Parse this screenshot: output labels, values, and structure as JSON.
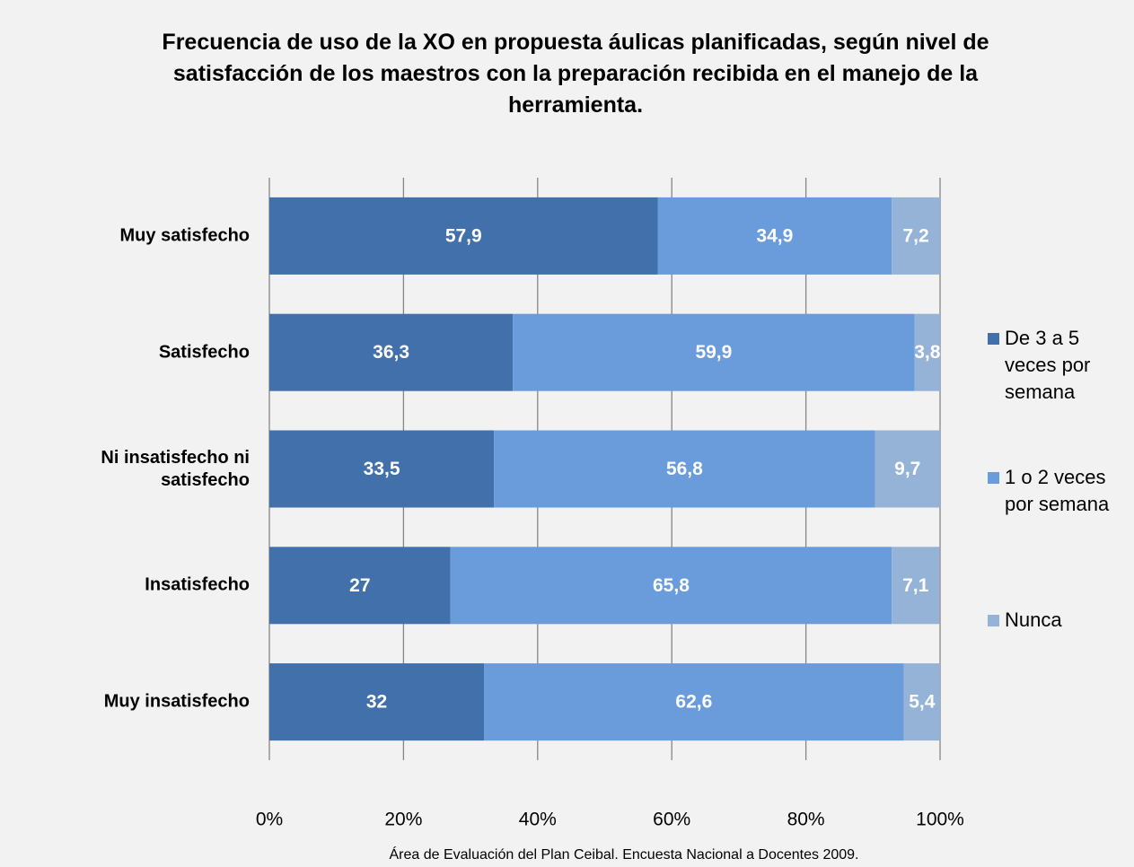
{
  "chart_data": {
    "type": "stacked_barh",
    "title": "Frecuencia de uso de la XO en propuesta áulicas planificadas, según nivel de satisfacción de los maestros con la preparación recibida en el manejo de la herramienta.",
    "source": "Área de Evaluación del Plan Ceibal. Encuesta Nacional a Docentes 2009.",
    "categories": [
      "Muy satisfecho",
      "Satisfecho",
      "Ni insatisfecho ni satisfecho",
      "Insatisfecho",
      "Muy insatisfecho"
    ],
    "series": [
      {
        "name": "De 3 a 5 veces por semana",
        "color": "#4170aa",
        "values": [
          57.9,
          36.3,
          33.5,
          27,
          32
        ],
        "value_labels": [
          "57,9",
          "36,3",
          "33,5",
          "27",
          "32"
        ]
      },
      {
        "name": "1 o 2 veces por semana",
        "color": "#6a9cdc",
        "values": [
          34.9,
          59.9,
          56.8,
          65.8,
          62.6
        ],
        "value_labels": [
          "34,9",
          "59,9",
          "56,8",
          "65,8",
          "62,6"
        ]
      },
      {
        "name": "Nunca",
        "color": "#95b3d7",
        "values": [
          7.2,
          3.8,
          9.7,
          7.1,
          5.4
        ],
        "value_labels": [
          "7,2",
          "3,8",
          "9,7",
          "7,1",
          "5,4"
        ]
      }
    ],
    "xlim": [
      0,
      100
    ],
    "xticks": [
      {
        "value": 0,
        "label": "0%"
      },
      {
        "value": 20,
        "label": "20%"
      },
      {
        "value": 40,
        "label": "40%"
      },
      {
        "value": 60,
        "label": "60%"
      },
      {
        "value": 80,
        "label": "80%"
      },
      {
        "value": 100,
        "label": "100%"
      }
    ],
    "grid": true,
    "legend": "right"
  }
}
